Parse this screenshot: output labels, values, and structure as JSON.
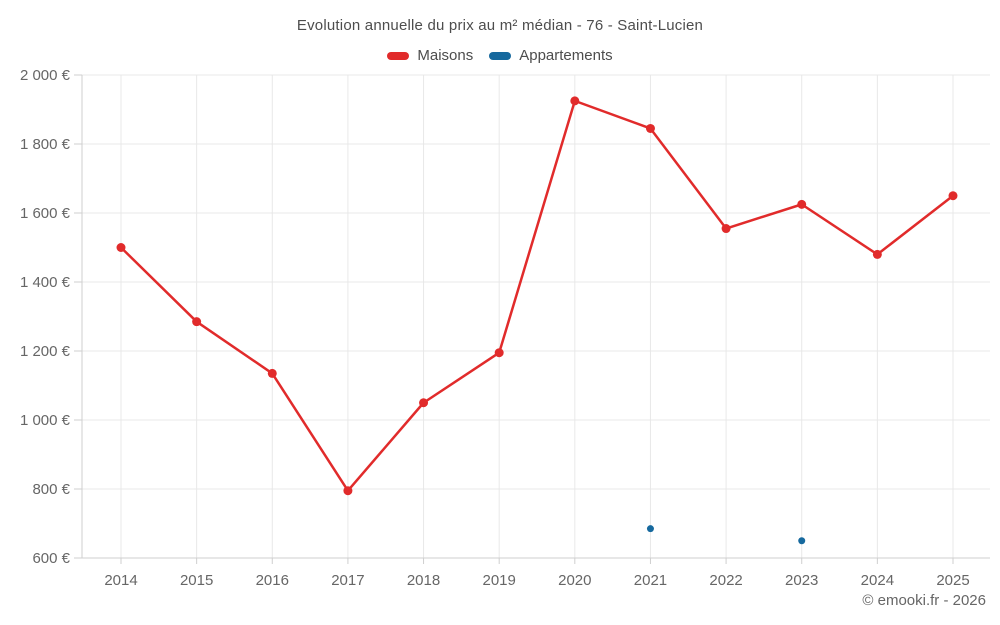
{
  "title": "Evolution annuelle du prix au m² médian - 76 - Saint-Lucien",
  "legend": [
    {
      "label": "Maisons",
      "color": "#e12b2b"
    },
    {
      "label": "Appartements",
      "color": "#16699e"
    }
  ],
  "attribution": "© emooki.fr - 2026",
  "chart_data": {
    "type": "line",
    "title": "Evolution annuelle du prix au m² médian - 76 - Saint-Lucien",
    "categories": [
      "2014",
      "2015",
      "2016",
      "2017",
      "2018",
      "2019",
      "2020",
      "2021",
      "2022",
      "2023",
      "2024",
      "2025"
    ],
    "series": [
      {
        "name": "Maisons",
        "type": "line",
        "color": "#e12b2b",
        "point_radius": 4.5,
        "values": [
          1500,
          1285,
          1135,
          795,
          1050,
          1195,
          1925,
          1845,
          1555,
          1625,
          1480,
          1650
        ]
      },
      {
        "name": "Appartements",
        "type": "points",
        "color": "#16699e",
        "point_radius": 3.5,
        "values": [
          null,
          null,
          null,
          null,
          null,
          null,
          null,
          685,
          null,
          650,
          null,
          null
        ]
      }
    ],
    "xlabel": "",
    "ylabel": "",
    "ylim": [
      600,
      2000
    ],
    "ytick_step": 200,
    "ytick_labels": [
      "600 €",
      "800 €",
      "1 000 €",
      "1 200 €",
      "1 400 €",
      "1 600 €",
      "1 800 €",
      "2 000 €"
    ],
    "unit": "€",
    "grid": true,
    "legend_position": "top",
    "grid_color": "#e8e8e8",
    "axis_color": "#cfcfcf",
    "tick_color": "#666666"
  }
}
